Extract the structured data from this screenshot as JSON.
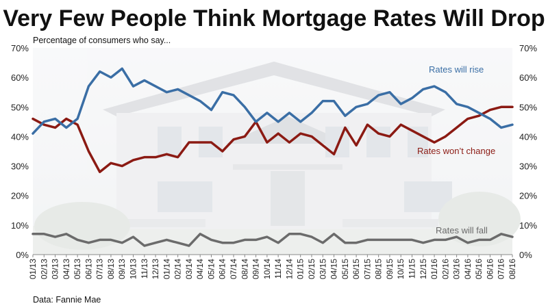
{
  "chart_data": {
    "type": "line",
    "title": "Very Few People Think Mortgage Rates Will Drop",
    "subtitle": "Percentage of consumers who say...",
    "source": "Data: Fannie Mae",
    "y_ticks": [
      "0%",
      "10%",
      "20%",
      "30%",
      "40%",
      "50%",
      "60%",
      "70%"
    ],
    "ylim": [
      0,
      70
    ],
    "y_axis_both_sides": true,
    "grid": false,
    "categories": [
      "01/13",
      "02/13",
      "03/13",
      "04/13",
      "05/13",
      "06/13",
      "07/13",
      "08/13",
      "09/13",
      "10/13",
      "11/13",
      "12/13",
      "01/14",
      "02/14",
      "03/14",
      "04/14",
      "05/14",
      "06/14",
      "07/14",
      "08/14",
      "09/14",
      "10/14",
      "11/14",
      "12/14",
      "01/15",
      "02/15",
      "03/15",
      "04/15",
      "05/15",
      "06/15",
      "07/15",
      "08/15",
      "09/15",
      "10/15",
      "11/15",
      "12/15",
      "01/16",
      "02/16",
      "03/16",
      "04/16",
      "05/16",
      "06/16",
      "07/16",
      "08/16"
    ],
    "series": [
      {
        "name": "Rates will rise",
        "color": "#3a6ea5",
        "values": [
          41,
          45,
          46,
          43,
          46,
          57,
          62,
          60,
          63,
          57,
          59,
          57,
          55,
          56,
          54,
          52,
          49,
          55,
          54,
          50,
          45,
          48,
          45,
          48,
          45,
          48,
          52,
          52,
          47,
          50,
          51,
          54,
          55,
          51,
          53,
          56,
          57,
          55,
          51,
          50,
          48,
          46,
          43,
          44
        ]
      },
      {
        "name": "Rates won’t change",
        "color": "#8b1a13",
        "values": [
          46,
          44,
          43,
          46,
          44,
          35,
          28,
          31,
          30,
          32,
          33,
          33,
          34,
          33,
          38,
          38,
          38,
          35,
          39,
          40,
          45,
          38,
          41,
          38,
          41,
          40,
          37,
          34,
          43,
          37,
          44,
          41,
          40,
          44,
          42,
          40,
          38,
          40,
          43,
          46,
          47,
          49,
          50,
          50
        ]
      },
      {
        "name": "Rates will fall",
        "color": "#6b6b6b",
        "values": [
          7,
          7,
          6,
          7,
          5,
          4,
          5,
          5,
          4,
          6,
          3,
          4,
          5,
          4,
          3,
          7,
          5,
          4,
          4,
          5,
          5,
          6,
          4,
          7,
          7,
          6,
          4,
          7,
          4,
          4,
          5,
          5,
          5,
          5,
          5,
          4,
          5,
          5,
          6,
          4,
          5,
          5,
          7,
          6
        ]
      }
    ],
    "legend": "inline labels near lines"
  }
}
